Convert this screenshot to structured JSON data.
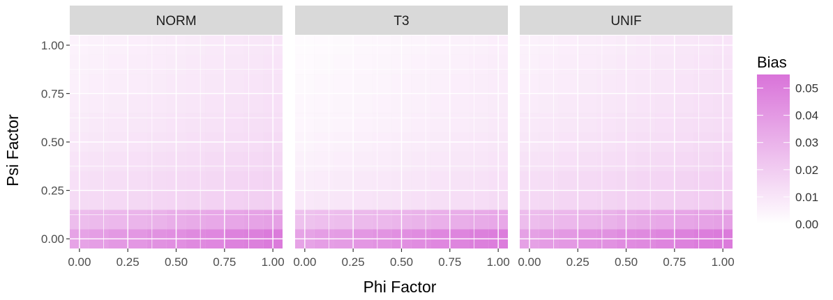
{
  "chart_data": {
    "type": "heatmap",
    "facets": [
      "NORM",
      "T3",
      "UNIF"
    ],
    "xlabel": "Phi Factor",
    "ylabel": "Psi Factor",
    "x_values": [
      0.0,
      0.1,
      0.2,
      0.3,
      0.4,
      0.5,
      0.6,
      0.7,
      0.8,
      0.9,
      1.0
    ],
    "y_values": [
      0.0,
      0.1,
      0.2,
      0.3,
      0.4,
      0.5,
      0.6,
      0.7,
      0.8,
      0.9,
      1.0
    ],
    "x_ticks": [
      0.0,
      0.25,
      0.5,
      0.75,
      1.0
    ],
    "x_tick_labels": [
      "0.00",
      "0.25",
      "0.50",
      "0.75",
      "1.00"
    ],
    "y_ticks": [
      0.0,
      0.25,
      0.5,
      0.75,
      1.0
    ],
    "y_tick_labels": [
      "0.00",
      "0.25",
      "0.50",
      "0.75",
      "1.00"
    ],
    "xlim": [
      -0.05,
      1.05
    ],
    "ylim": [
      -0.05,
      1.05
    ],
    "legend": {
      "title": "Bias",
      "placement": "right",
      "range": [
        0.0,
        0.055
      ],
      "ticks": [
        0.0,
        0.01,
        0.02,
        0.03,
        0.04,
        0.05
      ],
      "tick_labels": [
        "0.00",
        "0.01",
        "0.02",
        "0.03",
        "0.04",
        "0.05"
      ],
      "low_color": "#ffffff",
      "high_color": "#d973d9"
    },
    "colors": {
      "panel_bg": "#ebebeb",
      "strip_bg": "#d9d9d9",
      "grid": "#ffffff"
    },
    "bias": {
      "NORM": [
        [
          0.036,
          0.038,
          0.04,
          0.041,
          0.043,
          0.044,
          0.046,
          0.047,
          0.049,
          0.05,
          0.052
        ],
        [
          0.026,
          0.027,
          0.028,
          0.029,
          0.03,
          0.032,
          0.033,
          0.034,
          0.035,
          0.036,
          0.037
        ],
        [
          0.014,
          0.0145,
          0.015,
          0.0155,
          0.016,
          0.0165,
          0.017,
          0.0175,
          0.018,
          0.0185,
          0.019
        ],
        [
          0.012,
          0.0125,
          0.013,
          0.0135,
          0.014,
          0.0145,
          0.015,
          0.0155,
          0.016,
          0.0165,
          0.017
        ],
        [
          0.0105,
          0.011,
          0.0115,
          0.012,
          0.0125,
          0.013,
          0.0135,
          0.014,
          0.0145,
          0.015,
          0.0155
        ],
        [
          0.009,
          0.0095,
          0.01,
          0.0105,
          0.011,
          0.0115,
          0.012,
          0.0125,
          0.013,
          0.0135,
          0.014
        ],
        [
          0.008,
          0.0085,
          0.009,
          0.0095,
          0.01,
          0.0105,
          0.011,
          0.0115,
          0.012,
          0.0125,
          0.013
        ],
        [
          0.007,
          0.0075,
          0.008,
          0.0085,
          0.009,
          0.0095,
          0.01,
          0.0105,
          0.011,
          0.0115,
          0.012
        ],
        [
          0.006,
          0.0065,
          0.007,
          0.0075,
          0.008,
          0.0085,
          0.009,
          0.0095,
          0.01,
          0.0105,
          0.011
        ],
        [
          0.0055,
          0.006,
          0.0065,
          0.007,
          0.0075,
          0.008,
          0.0085,
          0.009,
          0.0095,
          0.01,
          0.0105
        ],
        [
          0.005,
          0.0055,
          0.006,
          0.0065,
          0.007,
          0.0075,
          0.008,
          0.0085,
          0.009,
          0.0095,
          0.01
        ]
      ],
      "T3": [
        [
          0.036,
          0.038,
          0.039,
          0.041,
          0.042,
          0.044,
          0.045,
          0.047,
          0.048,
          0.05,
          0.051
        ],
        [
          0.024,
          0.025,
          0.026,
          0.027,
          0.028,
          0.029,
          0.03,
          0.031,
          0.032,
          0.033,
          0.034
        ],
        [
          0.009,
          0.0095,
          0.01,
          0.0105,
          0.011,
          0.0115,
          0.012,
          0.0125,
          0.013,
          0.0135,
          0.014
        ],
        [
          0.007,
          0.0075,
          0.008,
          0.0085,
          0.009,
          0.0095,
          0.01,
          0.0105,
          0.011,
          0.0115,
          0.012
        ],
        [
          0.0055,
          0.006,
          0.0065,
          0.007,
          0.0075,
          0.008,
          0.0085,
          0.009,
          0.0095,
          0.01,
          0.0105
        ],
        [
          0.0045,
          0.005,
          0.0055,
          0.006,
          0.0065,
          0.007,
          0.0075,
          0.008,
          0.0085,
          0.009,
          0.0095
        ],
        [
          0.0035,
          0.004,
          0.0045,
          0.005,
          0.0055,
          0.006,
          0.0065,
          0.007,
          0.0075,
          0.008,
          0.0085
        ],
        [
          0.003,
          0.0035,
          0.004,
          0.0045,
          0.005,
          0.0055,
          0.006,
          0.0065,
          0.007,
          0.0075,
          0.008
        ],
        [
          0.0025,
          0.003,
          0.0035,
          0.004,
          0.0045,
          0.005,
          0.0055,
          0.006,
          0.0065,
          0.007,
          0.0075
        ],
        [
          0.002,
          0.0025,
          0.003,
          0.0035,
          0.004,
          0.0045,
          0.005,
          0.0055,
          0.006,
          0.0065,
          0.007
        ],
        [
          0.0015,
          0.002,
          0.0025,
          0.003,
          0.0035,
          0.004,
          0.0045,
          0.005,
          0.0055,
          0.006,
          0.0065
        ]
      ],
      "UNIF": [
        [
          0.037,
          0.039,
          0.04,
          0.042,
          0.043,
          0.045,
          0.046,
          0.048,
          0.049,
          0.051,
          0.052
        ],
        [
          0.026,
          0.027,
          0.028,
          0.029,
          0.03,
          0.032,
          0.033,
          0.034,
          0.035,
          0.036,
          0.037
        ],
        [
          0.015,
          0.0155,
          0.016,
          0.0165,
          0.017,
          0.0175,
          0.018,
          0.0185,
          0.019,
          0.0195,
          0.02
        ],
        [
          0.013,
          0.0135,
          0.014,
          0.0145,
          0.015,
          0.0155,
          0.016,
          0.0165,
          0.017,
          0.0175,
          0.018
        ],
        [
          0.011,
          0.0115,
          0.012,
          0.0125,
          0.013,
          0.0135,
          0.014,
          0.0145,
          0.015,
          0.0155,
          0.016
        ],
        [
          0.0095,
          0.01,
          0.0105,
          0.011,
          0.0115,
          0.012,
          0.0125,
          0.013,
          0.0135,
          0.014,
          0.0145
        ],
        [
          0.0085,
          0.009,
          0.0095,
          0.01,
          0.0105,
          0.011,
          0.0115,
          0.012,
          0.0125,
          0.013,
          0.0135
        ],
        [
          0.0075,
          0.008,
          0.0085,
          0.009,
          0.0095,
          0.01,
          0.0105,
          0.011,
          0.0115,
          0.012,
          0.0125
        ],
        [
          0.0065,
          0.007,
          0.0075,
          0.008,
          0.0085,
          0.009,
          0.0095,
          0.01,
          0.0105,
          0.011,
          0.0115
        ],
        [
          0.006,
          0.0065,
          0.007,
          0.0075,
          0.008,
          0.0085,
          0.009,
          0.0095,
          0.01,
          0.0105,
          0.011
        ],
        [
          0.0055,
          0.006,
          0.0065,
          0.007,
          0.0075,
          0.008,
          0.0085,
          0.009,
          0.0095,
          0.01,
          0.0105
        ]
      ]
    }
  }
}
